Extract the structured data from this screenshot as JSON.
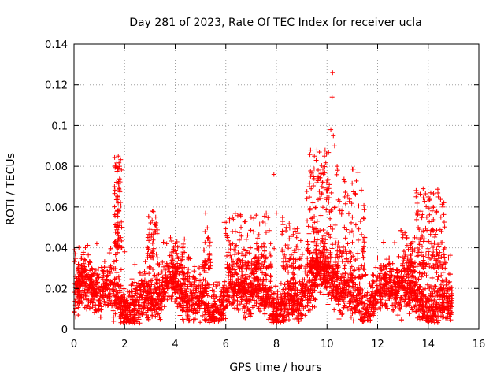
{
  "chart_data": {
    "type": "scatter",
    "title": "Day 281 of 2023, Rate Of TEC Index for receiver ucla",
    "xlabel": "GPS time / hours",
    "ylabel": "ROTI / TECUs",
    "xlim": [
      0,
      16
    ],
    "ylim": [
      0,
      0.14
    ],
    "grid": true,
    "marker": "+",
    "series": [
      {
        "name": "ROTI",
        "color": "#ff0000",
        "note": "Dense cloud of points from 0 to ~15 h; baseline ~0.005-0.03 TECU, values below are representative highlights",
        "points": [
          [
            0.02,
            0.039
          ],
          [
            0.05,
            0.037
          ],
          [
            0.1,
            0.025
          ],
          [
            0.3,
            0.035
          ],
          [
            0.45,
            0.04
          ],
          [
            0.9,
            0.042
          ],
          [
            1.6,
            0.07
          ],
          [
            1.65,
            0.08
          ],
          [
            1.75,
            0.085
          ],
          [
            1.8,
            0.08
          ],
          [
            1.72,
            0.065
          ],
          [
            1.78,
            0.058
          ],
          [
            1.7,
            0.05
          ],
          [
            1.85,
            0.045
          ],
          [
            2.0,
            0.038
          ],
          [
            2.6,
            0.003
          ],
          [
            3.0,
            0.055
          ],
          [
            3.1,
            0.058
          ],
          [
            3.2,
            0.048
          ],
          [
            4.0,
            0.042
          ],
          [
            4.3,
            0.04
          ],
          [
            5.2,
            0.057
          ],
          [
            5.3,
            0.045
          ],
          [
            6.0,
            0.047
          ],
          [
            6.3,
            0.054
          ],
          [
            6.6,
            0.05
          ],
          [
            7.0,
            0.055
          ],
          [
            7.2,
            0.056
          ],
          [
            7.6,
            0.057
          ],
          [
            7.9,
            0.076
          ],
          [
            8.0,
            0.057
          ],
          [
            8.4,
            0.05
          ],
          [
            8.8,
            0.045
          ],
          [
            9.3,
            0.07
          ],
          [
            9.5,
            0.085
          ],
          [
            9.6,
            0.088
          ],
          [
            9.7,
            0.087
          ],
          [
            9.8,
            0.07
          ],
          [
            9.9,
            0.085
          ],
          [
            10.0,
            0.068
          ],
          [
            10.15,
            0.098
          ],
          [
            10.2,
            0.114
          ],
          [
            10.22,
            0.126
          ],
          [
            10.25,
            0.095
          ],
          [
            10.3,
            0.09
          ],
          [
            10.4,
            0.08
          ],
          [
            10.7,
            0.065
          ],
          [
            11.0,
            0.055
          ],
          [
            11.5,
            0.045
          ],
          [
            12.0,
            0.035
          ],
          [
            13.0,
            0.045
          ],
          [
            13.3,
            0.04
          ],
          [
            13.6,
            0.058
          ],
          [
            13.8,
            0.069
          ],
          [
            14.0,
            0.065
          ],
          [
            14.1,
            0.067
          ],
          [
            14.2,
            0.06
          ],
          [
            14.4,
            0.065
          ],
          [
            14.5,
            0.055
          ],
          [
            14.8,
            0.035
          ]
        ]
      }
    ],
    "x_ticks": [
      "0",
      "2",
      "4",
      "6",
      "8",
      "10",
      "12",
      "14",
      "16"
    ],
    "y_ticks": [
      "0",
      "0.02",
      "0.04",
      "0.06",
      "0.08",
      "0.1",
      "0.12",
      "0.14"
    ]
  }
}
